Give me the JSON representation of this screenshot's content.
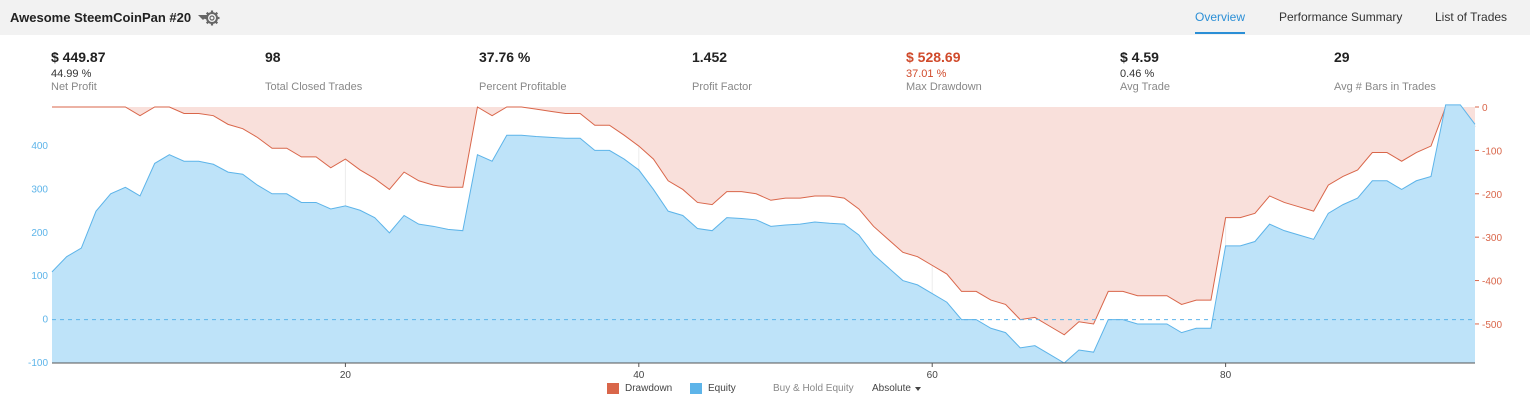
{
  "header": {
    "strategy_name": "Awesome SteemCoinPan #20",
    "tabs": [
      {
        "label": "Overview",
        "active": true
      },
      {
        "label": "Performance Summary",
        "active": false
      },
      {
        "label": "List of Trades",
        "active": false
      }
    ]
  },
  "metrics": [
    {
      "value": "$ 449.87",
      "sub": "44.99 %",
      "label": "Net Profit"
    },
    {
      "value": "98",
      "sub": "",
      "label": "Total Closed Trades"
    },
    {
      "value": "37.76 %",
      "sub": "",
      "label": "Percent Profitable"
    },
    {
      "value": "1.452",
      "sub": "",
      "label": "Profit Factor"
    },
    {
      "value": "$ 528.69",
      "sub": "37.01 %",
      "label": "Max Drawdown",
      "highlight": "#d04a2b"
    },
    {
      "value": "$ 4.59",
      "sub": "0.46 %",
      "label": "Avg Trade"
    },
    {
      "value": "29",
      "sub": "",
      "label": "Avg # Bars in Trades"
    }
  ],
  "legend": {
    "drawdown": "Drawdown",
    "equity": "Equity",
    "buy_hold": "Buy & Hold Equity",
    "mode": "Absolute"
  },
  "colors": {
    "equity_fill": "#bee3f9",
    "equity_line": "#5db4e9",
    "drawdown_fill": "#f9e0db",
    "drawdown_line": "#d9664a",
    "accent": "#2b8fd6"
  },
  "chart_data": {
    "type": "area",
    "x_ticks": [
      20,
      40,
      60,
      80
    ],
    "x_range": [
      0,
      97
    ],
    "left_axis": {
      "ticks": [
        400,
        300,
        200,
        100,
        0,
        -100
      ],
      "range": [
        -100,
        490
      ]
    },
    "right_axis": {
      "ticks": [
        0,
        -100,
        -200,
        -300,
        -400,
        -500
      ],
      "range": [
        -590,
        0
      ]
    },
    "zero_line": "dashed",
    "series": [
      {
        "name": "Equity",
        "values": [
          110,
          145,
          165,
          250,
          290,
          305,
          285,
          360,
          380,
          365,
          365,
          358,
          340,
          335,
          310,
          290,
          290,
          270,
          270,
          255,
          262,
          252,
          235,
          200,
          240,
          220,
          215,
          208,
          205,
          380,
          365,
          425,
          425,
          422,
          420,
          418,
          418,
          390,
          390,
          370,
          345,
          300,
          250,
          240,
          210,
          205,
          235,
          233,
          230,
          215,
          218,
          220,
          225,
          222,
          220,
          195,
          150,
          120,
          90,
          80,
          60,
          40,
          0,
          0,
          -20,
          -30,
          -65,
          -60,
          -80,
          -100,
          -70,
          -75,
          0,
          0,
          -10,
          -10,
          -10,
          -30,
          -20,
          -20,
          170,
          170,
          180,
          220,
          205,
          195,
          185,
          245,
          265,
          280,
          320,
          320,
          300,
          320,
          330,
          495,
          495,
          450
        ]
      },
      {
        "name": "Drawdown",
        "values": [
          0,
          0,
          0,
          0,
          0,
          0,
          -20,
          0,
          0,
          -15,
          -15,
          -20,
          -40,
          -50,
          -70,
          -95,
          -95,
          -115,
          -115,
          -140,
          -120,
          -145,
          -165,
          -190,
          -150,
          -170,
          -180,
          -185,
          -185,
          0,
          -20,
          0,
          0,
          -5,
          -10,
          -15,
          -15,
          -42,
          -42,
          -65,
          -90,
          -120,
          -170,
          -190,
          -220,
          -225,
          -195,
          -195,
          -200,
          -215,
          -210,
          -210,
          -205,
          -205,
          -210,
          -235,
          -275,
          -305,
          -335,
          -345,
          -365,
          -385,
          -425,
          -425,
          -445,
          -455,
          -490,
          -485,
          -505,
          -525,
          -495,
          -500,
          -425,
          -425,
          -435,
          -435,
          -435,
          -455,
          -445,
          -445,
          -255,
          -255,
          -245,
          -205,
          -220,
          -230,
          -240,
          -180,
          -160,
          -145,
          -105,
          -105,
          -125,
          -105,
          -90,
          0,
          0,
          -45
        ]
      }
    ]
  }
}
